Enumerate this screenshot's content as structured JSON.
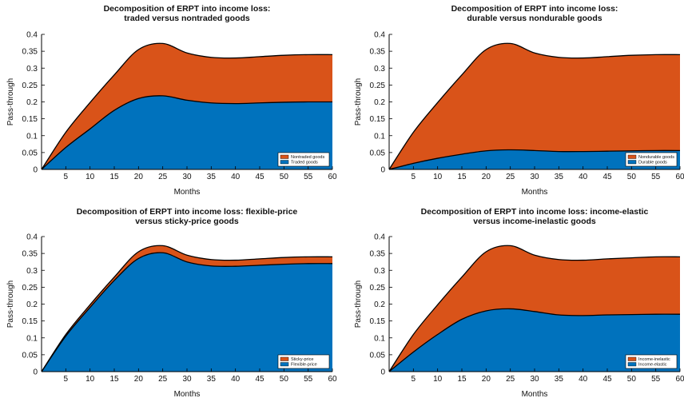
{
  "colors": {
    "series_top": "#D95319",
    "series_bottom": "#0072BD",
    "outline": "#000000"
  },
  "chart_data": [
    {
      "type": "area",
      "stacked": true,
      "title": [
        "Decomposition of ERPT into income loss:",
        "traded versus nontraded goods"
      ],
      "xlabel": "Months",
      "ylabel": "Pass-through",
      "xlim": [
        0,
        60
      ],
      "ylim": [
        0,
        0.4
      ],
      "xticks": [
        5,
        10,
        15,
        20,
        25,
        30,
        35,
        40,
        45,
        50,
        55,
        60
      ],
      "yticks": [
        0,
        0.05,
        0.1,
        0.15,
        0.2,
        0.25,
        0.3,
        0.35,
        0.4
      ],
      "ytick_labels": [
        "0",
        "0.05",
        "0.1",
        "0.15",
        "0.2",
        "0.25",
        "0.3",
        "0.35",
        "0.4"
      ],
      "grid": false,
      "legend_position": "bottom-right",
      "x": [
        0,
        5,
        10,
        15,
        20,
        25,
        30,
        35,
        40,
        45,
        50,
        55,
        60
      ],
      "series": [
        {
          "name": "Traded goods",
          "color": "#0072BD",
          "values": [
            0,
            0.065,
            0.12,
            0.175,
            0.21,
            0.218,
            0.205,
            0.197,
            0.195,
            0.197,
            0.199,
            0.2,
            0.2
          ]
        },
        {
          "name": "Nontraded goods",
          "color": "#D95319",
          "values": [
            0,
            0.045,
            0.078,
            0.105,
            0.145,
            0.155,
            0.14,
            0.135,
            0.135,
            0.137,
            0.139,
            0.14,
            0.14
          ]
        }
      ],
      "legend_order": [
        "Nontraded goods",
        "Traded goods"
      ]
    },
    {
      "type": "area",
      "stacked": true,
      "title": [
        "Decomposition of ERPT into income loss:",
        "durable versus nondurable goods"
      ],
      "xlabel": "Months",
      "ylabel": "Pass-through",
      "xlim": [
        0,
        60
      ],
      "ylim": [
        0,
        0.4
      ],
      "xticks": [
        5,
        10,
        15,
        20,
        25,
        30,
        35,
        40,
        45,
        50,
        55,
        60
      ],
      "yticks": [
        0,
        0.05,
        0.1,
        0.15,
        0.2,
        0.25,
        0.3,
        0.35,
        0.4
      ],
      "ytick_labels": [
        "0",
        "0.05",
        "0.1",
        "0.15",
        "0.2",
        "0.25",
        "0.3",
        "0.35",
        "0.4"
      ],
      "grid": false,
      "legend_position": "bottom-right",
      "x": [
        0,
        5,
        10,
        15,
        20,
        25,
        30,
        35,
        40,
        45,
        50,
        55,
        60
      ],
      "series": [
        {
          "name": "Durable goods",
          "color": "#0072BD",
          "values": [
            0,
            0.018,
            0.033,
            0.045,
            0.055,
            0.058,
            0.056,
            0.053,
            0.053,
            0.054,
            0.055,
            0.056,
            0.056
          ]
        },
        {
          "name": "Nondurable goods",
          "color": "#D95319",
          "values": [
            0,
            0.092,
            0.165,
            0.235,
            0.3,
            0.315,
            0.289,
            0.279,
            0.277,
            0.28,
            0.283,
            0.284,
            0.284
          ]
        }
      ],
      "legend_order": [
        "Nondurable goods",
        "Durable goods"
      ]
    },
    {
      "type": "area",
      "stacked": true,
      "title": [
        "Decomposition of ERPT into income loss: flexible-price",
        "versus sticky-price goods"
      ],
      "xlabel": "Months",
      "ylabel": "Pass-through",
      "xlim": [
        0,
        60
      ],
      "ylim": [
        0,
        0.4
      ],
      "xticks": [
        5,
        10,
        15,
        20,
        25,
        30,
        35,
        40,
        45,
        50,
        55,
        60
      ],
      "yticks": [
        0,
        0.05,
        0.1,
        0.15,
        0.2,
        0.25,
        0.3,
        0.35,
        0.4
      ],
      "ytick_labels": [
        "0",
        "0.05",
        "0.1",
        "0.15",
        "0.2",
        "0.25",
        "0.3",
        "0.35",
        "0.4"
      ],
      "grid": false,
      "legend_position": "bottom-right",
      "x": [
        0,
        5,
        10,
        15,
        20,
        25,
        30,
        35,
        40,
        45,
        50,
        55,
        60
      ],
      "series": [
        {
          "name": "Flexible-price",
          "color": "#0072BD",
          "values": [
            0,
            0.105,
            0.19,
            0.27,
            0.335,
            0.352,
            0.325,
            0.313,
            0.312,
            0.315,
            0.318,
            0.32,
            0.32
          ]
        },
        {
          "name": "Sticky-price",
          "color": "#D95319",
          "values": [
            0,
            0.005,
            0.008,
            0.01,
            0.02,
            0.021,
            0.02,
            0.019,
            0.018,
            0.019,
            0.02,
            0.02,
            0.02
          ]
        }
      ],
      "legend_order": [
        "Sticky-price",
        "Flexible-price"
      ]
    },
    {
      "type": "area",
      "stacked": true,
      "title": [
        "Decomposition of ERPT into income loss: income-elastic",
        "versus income-inelastic goods"
      ],
      "xlabel": "Months",
      "ylabel": "Pass-through",
      "xlim": [
        0,
        60
      ],
      "ylim": [
        0,
        0.4
      ],
      "xticks": [
        5,
        10,
        15,
        20,
        25,
        30,
        35,
        40,
        45,
        50,
        55,
        60
      ],
      "yticks": [
        0,
        0.05,
        0.1,
        0.15,
        0.2,
        0.25,
        0.3,
        0.35,
        0.4
      ],
      "ytick_labels": [
        "0",
        "0.05",
        "0.1",
        "0.15",
        "0.2",
        "0.25",
        "0.3",
        "0.35",
        "0.4"
      ],
      "grid": false,
      "legend_position": "bottom-right",
      "x": [
        0,
        5,
        10,
        15,
        20,
        25,
        30,
        35,
        40,
        45,
        50,
        55,
        60
      ],
      "series": [
        {
          "name": "Income-elastic",
          "color": "#0072BD",
          "values": [
            0,
            0.058,
            0.11,
            0.155,
            0.18,
            0.186,
            0.178,
            0.168,
            0.166,
            0.168,
            0.169,
            0.17,
            0.17
          ]
        },
        {
          "name": "Income-inelastic",
          "color": "#D95319",
          "values": [
            0,
            0.052,
            0.088,
            0.125,
            0.175,
            0.187,
            0.167,
            0.164,
            0.164,
            0.166,
            0.168,
            0.17,
            0.17
          ]
        }
      ],
      "legend_order": [
        "Income-inelastic",
        "Income-elastic"
      ]
    }
  ]
}
